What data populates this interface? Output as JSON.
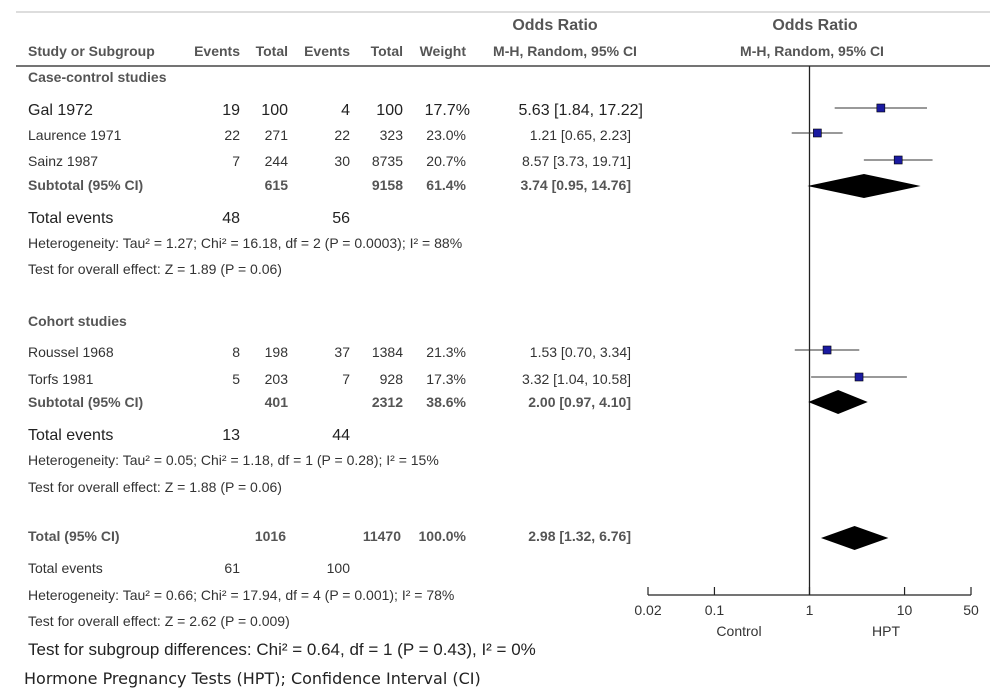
{
  "header": {
    "or_title_left": "Odds Ratio",
    "or_title_right": "Odds Ratio",
    "col_study": "Study or Subgroup",
    "col_events1": "Events",
    "col_total1": "Total",
    "col_events2": "Events",
    "col_total2": "Total",
    "col_weight": "Weight",
    "col_mh_left": "M-H, Random, 95% CI",
    "col_mh_right": "M-H, Random, 95% CI"
  },
  "subgroups": [
    {
      "name": "Case-control studies",
      "studies": [
        {
          "study": "Gal 1972",
          "e1": "19",
          "t1": "100",
          "e2": "4",
          "t2": "100",
          "weight": "17.7%",
          "ci_text": "5.63 [1.84, 17.22]"
        },
        {
          "study": "Laurence 1971",
          "e1": "22",
          "t1": "271",
          "e2": "22",
          "t2": "323",
          "weight": "23.0%",
          "ci_text": "1.21 [0.65, 2.23]"
        },
        {
          "study": "Sainz 1987",
          "e1": "7",
          "t1": "244",
          "e2": "30",
          "t2": "8735",
          "weight": "20.7%",
          "ci_text": "8.57 [3.73, 19.71]"
        }
      ],
      "subtotal": {
        "label": "Subtotal (95% CI)",
        "t1": "615",
        "t2": "9158",
        "weight": "61.4%",
        "ci_text": "3.74 [0.95, 14.76]"
      },
      "total_events": {
        "label": "Total events",
        "e1": "48",
        "e2": "56"
      },
      "heterogeneity": "Heterogeneity: Tau² = 1.27; Chi² = 16.18, df = 2 (P = 0.0003); I² = 88%",
      "overall": "Test for overall effect: Z = 1.89 (P = 0.06)"
    },
    {
      "name": "Cohort studies",
      "studies": [
        {
          "study": "Roussel 1968",
          "e1": "8",
          "t1": "198",
          "e2": "37",
          "t2": "1384",
          "weight": "21.3%",
          "ci_text": "1.53 [0.70, 3.34]"
        },
        {
          "study": "Torfs 1981",
          "e1": "5",
          "t1": "203",
          "e2": "7",
          "t2": "928",
          "weight": "17.3%",
          "ci_text": "3.32 [1.04, 10.58]"
        }
      ],
      "subtotal": {
        "label": "Subtotal (95% CI)",
        "t1": "401",
        "t2": "2312",
        "weight": "38.6%",
        "ci_text": "2.00 [0.97, 4.10]"
      },
      "total_events": {
        "label": "Total events",
        "e1": "13",
        "e2": "44"
      },
      "heterogeneity": "Heterogeneity: Tau² = 0.05; Chi² = 1.18, df = 1 (P = 0.28); I² = 15%",
      "overall": "Test for overall effect: Z = 1.88 (P = 0.06)"
    }
  ],
  "total": {
    "label": "Total (95% CI)",
    "t1": "1016",
    "t2": "11470",
    "weight": "100.0%",
    "ci_text": "2.98 [1.32, 6.76]",
    "events_label": "Total events",
    "e1": "61",
    "e2": "100",
    "heterogeneity": "Heterogeneity: Tau² = 0.66; Chi² = 17.94, df = 4 (P = 0.001); I² = 78%",
    "overall": "Test for overall effect: Z = 2.62 (P = 0.009)",
    "subgroup_diff": "Test for subgroup differences: Chi² = 0.64, df = 1 (P = 0.43), I² = 0%"
  },
  "axis": {
    "ticks": [
      0.02,
      0.1,
      1,
      10,
      50
    ],
    "tick_labels": [
      "0.02",
      "0.1",
      "1",
      "10",
      "50"
    ],
    "left_label": "Control",
    "right_label": "HPT",
    "scale": "log"
  },
  "footnote": "Hormone Pregnancy Tests (HPT); Confidence Interval (CI)",
  "colors": {
    "study_marker": "#1a1aa0",
    "diamond": "#000000",
    "line": "#222222",
    "header_text": "#555555"
  },
  "chart_data": {
    "type": "forest",
    "x_scale": "log",
    "xlim": [
      0.02,
      50
    ],
    "reference_line": 1,
    "studies": [
      {
        "name": "Gal 1972",
        "or": 5.63,
        "lo": 1.84,
        "hi": 17.22,
        "weight": 17.7
      },
      {
        "name": "Laurence 1971",
        "or": 1.21,
        "lo": 0.65,
        "hi": 2.23,
        "weight": 23.0
      },
      {
        "name": "Sainz 1987",
        "or": 8.57,
        "lo": 3.73,
        "hi": 19.71,
        "weight": 20.7
      },
      {
        "name": "Roussel 1968",
        "or": 1.53,
        "lo": 0.7,
        "hi": 3.34,
        "weight": 21.3
      },
      {
        "name": "Torfs 1981",
        "or": 3.32,
        "lo": 1.04,
        "hi": 10.58,
        "weight": 17.3
      }
    ],
    "pooled": [
      {
        "name": "Subtotal (95% CI)",
        "or": 3.74,
        "lo": 0.95,
        "hi": 14.76
      },
      {
        "name": "Subtotal (95% CI)",
        "or": 2.0,
        "lo": 0.97,
        "hi": 4.1
      },
      {
        "name": "Total (95% CI)",
        "or": 2.98,
        "lo": 1.32,
        "hi": 6.76
      }
    ]
  }
}
